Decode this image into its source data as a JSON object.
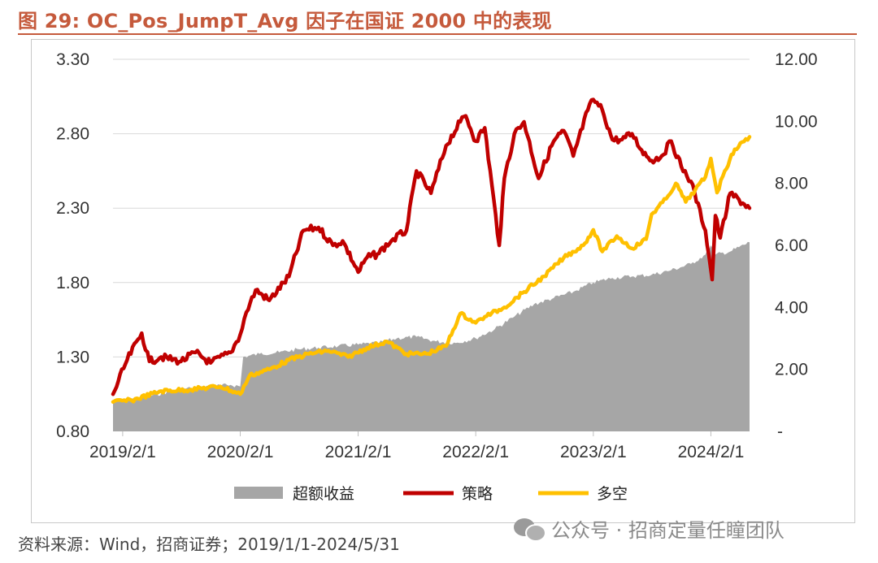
{
  "title": "图 29:  OC_Pos_JumpT_Avg 因子在国证 2000 中的表现",
  "source": "资料来源：Wind，招商证券；2019/1/1-2024/5/31",
  "watermark": "公众号 · 招商定量任瞳团队",
  "watermark_icon": "wechat-icon",
  "colors": {
    "title": "#c55a3c",
    "excess": "#a6a6a6",
    "strategy": "#c00000",
    "longshort": "#ffc000"
  },
  "chart_data": {
    "type": "line",
    "x_ticks": [
      "2019/2/1",
      "2020/2/1",
      "2021/2/1",
      "2022/2/1",
      "2023/2/1",
      "2024/2/1"
    ],
    "x_range": [
      "2019/1/2",
      "2024/5/31"
    ],
    "left_axis": {
      "range": [
        0.8,
        3.3
      ],
      "ticks": [
        "0.80",
        "1.30",
        "1.80",
        "2.30",
        "2.80",
        "3.30"
      ]
    },
    "right_axis": {
      "range": [
        0,
        12
      ],
      "ticks": [
        "-",
        "2.00",
        "4.00",
        "6.00",
        "8.00",
        "10.00",
        "12.00"
      ]
    },
    "grid": "horizontal",
    "legend_position": "bottom",
    "series": [
      {
        "name": "超额收益",
        "kind": "area",
        "axis": "right",
        "color": "#a6a6a6",
        "x": [
          "2019/1/2",
          "2019/3/1",
          "2019/5/1",
          "2019/7/1",
          "2019/9/1",
          "2019/11/1",
          "2020/1/2",
          "2020/2/1",
          "2020/2/10",
          "2020/4/1",
          "2020/6/1",
          "2020/8/1",
          "2020/10/1",
          "2020/12/1",
          "2021/2/1",
          "2021/4/1",
          "2021/6/1",
          "2021/8/1",
          "2021/10/1",
          "2021/12/1",
          "2022/2/1",
          "2022/4/1",
          "2022/6/1",
          "2022/8/1",
          "2022/10/1",
          "2022/12/1",
          "2023/2/1",
          "2023/4/1",
          "2023/6/1",
          "2023/8/1",
          "2023/10/1",
          "2023/12/1",
          "2024/1/15",
          "2024/2/1",
          "2024/2/15",
          "2024/4/1",
          "2024/5/31"
        ],
        "y": [
          0.95,
          1.05,
          1.15,
          1.3,
          1.4,
          1.45,
          1.5,
          1.45,
          2.4,
          2.5,
          2.55,
          2.65,
          2.7,
          2.75,
          2.8,
          2.85,
          3.0,
          3.05,
          2.9,
          2.85,
          3.0,
          3.3,
          3.7,
          4.1,
          4.3,
          4.5,
          4.8,
          4.95,
          5.0,
          5.05,
          5.2,
          5.4,
          5.7,
          6.0,
          5.7,
          5.8,
          6.1
        ]
      },
      {
        "name": "策略",
        "kind": "line",
        "axis": "left",
        "color": "#c00000",
        "x": [
          "2019/1/2",
          "2019/2/15",
          "2019/4/1",
          "2019/4/25",
          "2019/6/1",
          "2019/8/1",
          "2019/9/15",
          "2019/11/1",
          "2020/1/2",
          "2020/2/1",
          "2020/2/20",
          "2020/3/20",
          "2020/5/1",
          "2020/7/1",
          "2020/8/15",
          "2020/10/1",
          "2020/11/15",
          "2020/12/15",
          "2021/2/1",
          "2021/3/1",
          "2021/4/1",
          "2021/5/15",
          "2021/7/1",
          "2021/8/1",
          "2021/9/15",
          "2021/11/1",
          "2021/12/15",
          "2022/1/1",
          "2022/2/1",
          "2022/3/1",
          "2022/4/15",
          "2022/5/1",
          "2022/6/1",
          "2022/7/1",
          "2022/8/15",
          "2022/10/1",
          "2022/11/1",
          "2022/12/1",
          "2023/1/15",
          "2023/2/1",
          "2023/3/1",
          "2023/4/1",
          "2023/5/1",
          "2023/6/1",
          "2023/7/1",
          "2023/8/1",
          "2023/9/1",
          "2023/10/1",
          "2023/11/1",
          "2023/12/1",
          "2024/1/15",
          "2024/2/5",
          "2024/2/15",
          "2024/3/1",
          "2024/4/1",
          "2024/5/31"
        ],
        "y": [
          1.05,
          1.28,
          1.46,
          1.27,
          1.3,
          1.27,
          1.33,
          1.26,
          1.33,
          1.45,
          1.6,
          1.75,
          1.68,
          1.84,
          2.15,
          2.17,
          2.05,
          2.08,
          1.87,
          1.97,
          1.99,
          2.08,
          2.15,
          2.55,
          2.4,
          2.72,
          2.88,
          2.92,
          2.75,
          2.84,
          2.05,
          2.5,
          2.8,
          2.88,
          2.5,
          2.75,
          2.82,
          2.65,
          2.96,
          3.03,
          2.96,
          2.76,
          2.76,
          2.8,
          2.69,
          2.62,
          2.65,
          2.75,
          2.58,
          2.48,
          2.15,
          1.82,
          2.25,
          2.1,
          2.4,
          2.3
        ]
      },
      {
        "name": "多空",
        "kind": "line",
        "axis": "right",
        "color": "#ffc000",
        "x": [
          "2019/1/2",
          "2019/3/1",
          "2019/6/1",
          "2019/9/1",
          "2019/12/1",
          "2020/2/1",
          "2020/3/1",
          "2020/5/1",
          "2020/7/1",
          "2020/9/1",
          "2020/11/1",
          "2021/1/1",
          "2021/3/1",
          "2021/5/1",
          "2021/7/1",
          "2021/9/1",
          "2021/11/1",
          "2021/12/15",
          "2022/2/1",
          "2022/3/1",
          "2022/5/1",
          "2022/7/1",
          "2022/9/1",
          "2022/11/1",
          "2023/1/1",
          "2023/2/1",
          "2023/3/1",
          "2023/4/15",
          "2023/6/1",
          "2023/7/15",
          "2023/8/1",
          "2023/9/15",
          "2023/10/15",
          "2023/11/15",
          "2023/12/15",
          "2024/1/15",
          "2024/2/1",
          "2024/2/20",
          "2024/3/15",
          "2024/4/15",
          "2024/5/31"
        ],
        "y": [
          0.95,
          1.0,
          1.3,
          1.35,
          1.45,
          1.2,
          1.8,
          2.0,
          2.3,
          2.5,
          2.6,
          2.4,
          2.7,
          2.9,
          2.5,
          2.5,
          2.75,
          3.8,
          3.5,
          3.7,
          4.0,
          4.5,
          5.0,
          5.6,
          6.0,
          6.5,
          5.8,
          6.3,
          5.9,
          6.2,
          7.0,
          7.5,
          8.0,
          7.4,
          7.8,
          8.2,
          8.8,
          7.7,
          8.4,
          9.1,
          9.5
        ]
      }
    ]
  }
}
